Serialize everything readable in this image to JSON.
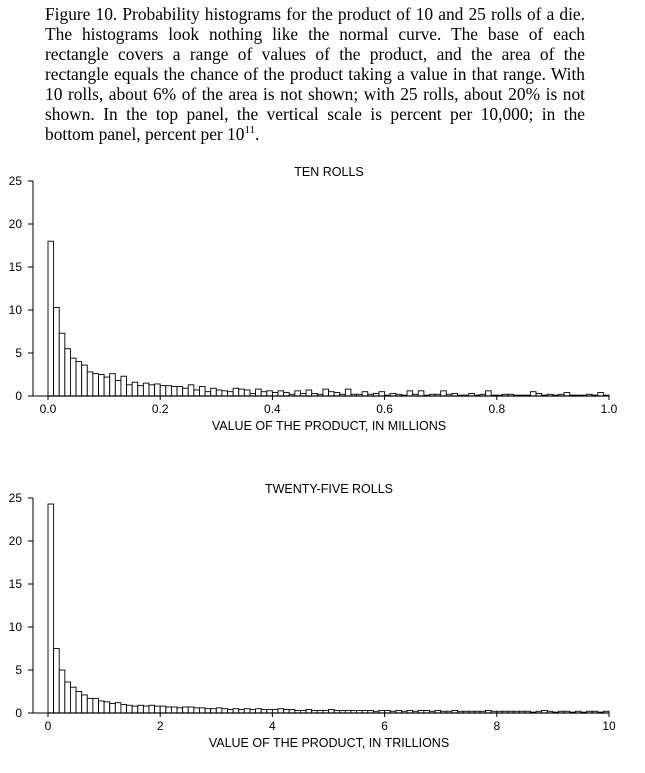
{
  "caption": {
    "text": "Figure 10.   Probability histograms for the product of 10 and 25 rolls of a die.  The histograms look nothing like the normal curve. The base of each rectangle covers a range of values of the product, and the area of the rectangle equals the chance of the product taking a value in that range. With 10 rolls, about 6% of the area is not shown; with 25 rolls, about 20% is not shown. In the top panel, the vertical scale is percent per 10,000; in the bottom panel, percent per 10",
    "superscript": "11",
    "end": "."
  },
  "chart_data": [
    {
      "type": "bar",
      "title": "TEN ROLLS",
      "xlabel": "VALUE OF THE PRODUCT, IN MILLIONS",
      "ylabel": "",
      "xlim": [
        0,
        1.0
      ],
      "ylim": [
        0,
        25
      ],
      "xticks": [
        "0.0",
        "0.2",
        "0.4",
        "0.6",
        "0.8",
        "1.0"
      ],
      "yticks": [
        "0",
        "5",
        "10",
        "15",
        "20",
        "25"
      ],
      "bin_width": 0.01,
      "values": [
        18.0,
        10.3,
        7.3,
        5.5,
        4.4,
        4.0,
        3.6,
        2.8,
        2.6,
        2.5,
        2.2,
        2.6,
        1.8,
        2.3,
        1.3,
        1.6,
        1.2,
        1.5,
        1.3,
        1.4,
        1.2,
        1.2,
        1.1,
        1.1,
        0.9,
        1.3,
        0.7,
        1.1,
        0.5,
        0.9,
        0.7,
        0.6,
        0.5,
        0.9,
        0.8,
        0.7,
        0.3,
        0.8,
        0.5,
        0.6,
        0.4,
        0.6,
        0.4,
        0.2,
        0.6,
        0.3,
        0.7,
        0.3,
        0.2,
        0.8,
        0.5,
        0.4,
        0.2,
        0.8,
        0.2,
        0.2,
        0.5,
        0.2,
        0.3,
        0.5,
        0.1,
        0.3,
        0.2,
        0.1,
        0.6,
        0.2,
        0.6,
        0.1,
        0.2,
        0.2,
        0.6,
        0.2,
        0.3,
        0.1,
        0.1,
        0.3,
        0.1,
        0.2,
        0.6,
        0.1,
        0.1,
        0.2,
        0.2,
        0.1,
        0.1,
        0.1,
        0.5,
        0.3,
        0.1,
        0.2,
        0.1,
        0.2,
        0.4,
        0.1,
        0.1,
        0.1,
        0.2,
        0.1,
        0.4,
        0.1
      ]
    },
    {
      "type": "bar",
      "title": "TWENTY-FIVE ROLLS",
      "xlabel": "VALUE OF THE PRODUCT, IN TRILLIONS",
      "ylabel": "",
      "xlim": [
        0,
        10
      ],
      "ylim": [
        0,
        25
      ],
      "xticks": [
        "0",
        "2",
        "4",
        "6",
        "8",
        "10"
      ],
      "yticks": [
        "0",
        "5",
        "10",
        "15",
        "20",
        "25"
      ],
      "bin_width": 0.1,
      "values": [
        24.3,
        7.5,
        5.0,
        3.6,
        3.0,
        2.5,
        2.1,
        1.7,
        1.7,
        1.4,
        1.3,
        1.1,
        1.2,
        1.0,
        0.9,
        0.8,
        0.9,
        0.8,
        0.9,
        0.8,
        0.8,
        0.7,
        0.7,
        0.6,
        0.7,
        0.7,
        0.6,
        0.6,
        0.5,
        0.5,
        0.6,
        0.5,
        0.4,
        0.5,
        0.4,
        0.5,
        0.4,
        0.5,
        0.4,
        0.4,
        0.4,
        0.5,
        0.4,
        0.4,
        0.3,
        0.3,
        0.4,
        0.3,
        0.3,
        0.3,
        0.4,
        0.3,
        0.3,
        0.3,
        0.3,
        0.3,
        0.3,
        0.3,
        0.2,
        0.3,
        0.3,
        0.2,
        0.3,
        0.2,
        0.3,
        0.2,
        0.3,
        0.3,
        0.2,
        0.3,
        0.2,
        0.2,
        0.3,
        0.2,
        0.2,
        0.2,
        0.2,
        0.2,
        0.3,
        0.2,
        0.2,
        0.2,
        0.2,
        0.2,
        0.2,
        0.2,
        0.1,
        0.2,
        0.3,
        0.2,
        0.1,
        0.2,
        0.2,
        0.1,
        0.2,
        0.1,
        0.2,
        0.2,
        0.1,
        0.2
      ]
    }
  ]
}
